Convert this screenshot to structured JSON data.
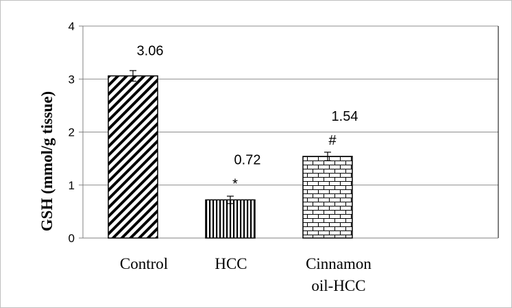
{
  "chart_data": {
    "type": "bar",
    "categories": [
      [
        "Control"
      ],
      [
        "HCC"
      ],
      [
        "Cinnamon",
        "oil-HCC"
      ]
    ],
    "values": [
      3.06,
      0.72,
      1.54
    ],
    "errors": [
      0.1,
      0.07,
      0.08
    ],
    "value_labels": [
      "3.06",
      "0.72",
      "1.54"
    ],
    "significance": [
      "",
      "*",
      "#"
    ],
    "patterns": [
      "diagonal-stripes",
      "vertical-stripes",
      "brick"
    ],
    "xlabel": "",
    "ylabel": "GSH (mmol/g tissue)",
    "ylim": [
      0,
      4
    ],
    "yticks": [
      "0",
      "1",
      "2",
      "3",
      "4"
    ],
    "grid": true,
    "bar_color": "#000000"
  }
}
